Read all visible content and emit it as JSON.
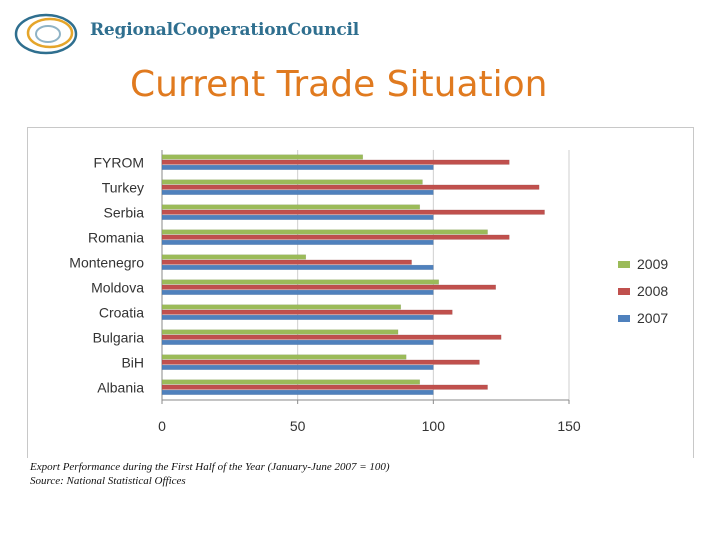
{
  "header": {
    "logo_text": "RegionalCooperationCouncil",
    "title": "Current Trade Situation"
  },
  "colors": {
    "s2009": "#9bbb59",
    "s2008": "#c0504d",
    "s2007": "#4f81bd",
    "title": "#e07a1f",
    "logo": "#2f6f8f"
  },
  "chart_data": {
    "type": "bar",
    "orientation": "horizontal",
    "title": "",
    "xlabel": "",
    "ylabel": "",
    "categories": [
      "FYROM",
      "Turkey",
      "Serbia",
      "Romania",
      "Montenegro",
      "Moldova",
      "Croatia",
      "Bulgaria",
      "BiH",
      "Albania"
    ],
    "series": [
      {
        "name": "2009",
        "color": "#9bbb59",
        "values": [
          74,
          96,
          95,
          120,
          53,
          102,
          88,
          87,
          90,
          95
        ]
      },
      {
        "name": "2008",
        "color": "#c0504d",
        "values": [
          128,
          139,
          141,
          128,
          92,
          123,
          107,
          125,
          117,
          120
        ]
      },
      {
        "name": "2007",
        "color": "#4f81bd",
        "values": [
          100,
          100,
          100,
          100,
          100,
          100,
          100,
          100,
          100,
          100
        ]
      }
    ],
    "xlim": [
      0,
      150
    ],
    "xticks": [
      0,
      50,
      100,
      150
    ],
    "grid": "vertical-major",
    "legend_position": "right"
  },
  "footer": {
    "caption": "Export Performance during the First Half of the Year (January-June 2007 = 100)",
    "source": "Source: National Statistical Offices"
  }
}
